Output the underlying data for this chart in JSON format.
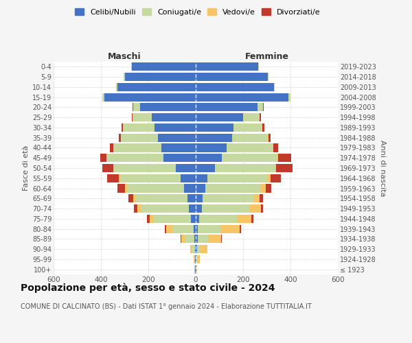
{
  "age_groups": [
    "100+",
    "95-99",
    "90-94",
    "85-89",
    "80-84",
    "75-79",
    "70-74",
    "65-69",
    "60-64",
    "55-59",
    "50-54",
    "45-49",
    "40-44",
    "35-39",
    "30-34",
    "25-29",
    "20-24",
    "15-19",
    "10-14",
    "5-9",
    "0-4"
  ],
  "birth_years": [
    "≤ 1923",
    "1924-1928",
    "1929-1933",
    "1934-1938",
    "1939-1943",
    "1944-1948",
    "1949-1953",
    "1954-1958",
    "1959-1963",
    "1964-1968",
    "1969-1973",
    "1974-1978",
    "1979-1983",
    "1984-1988",
    "1989-1993",
    "1994-1998",
    "1999-2003",
    "2004-2008",
    "2009-2013",
    "2014-2018",
    "2019-2023"
  ],
  "male_celibi": [
    2,
    2,
    3,
    5,
    10,
    20,
    30,
    35,
    50,
    65,
    85,
    135,
    145,
    160,
    175,
    185,
    235,
    385,
    330,
    300,
    270
  ],
  "male_coniugati": [
    3,
    5,
    15,
    40,
    90,
    160,
    200,
    220,
    240,
    255,
    260,
    240,
    200,
    155,
    130,
    80,
    30,
    10,
    5,
    3,
    2
  ],
  "male_vedovi": [
    0,
    2,
    5,
    15,
    25,
    15,
    15,
    10,
    10,
    5,
    3,
    2,
    2,
    1,
    1,
    1,
    0,
    0,
    0,
    0,
    0
  ],
  "male_divorziati": [
    0,
    0,
    0,
    3,
    5,
    10,
    15,
    20,
    30,
    50,
    45,
    25,
    15,
    10,
    8,
    5,
    2,
    0,
    0,
    0,
    0
  ],
  "fem_nubili": [
    2,
    3,
    5,
    8,
    10,
    15,
    25,
    30,
    40,
    50,
    80,
    110,
    130,
    155,
    160,
    200,
    260,
    390,
    330,
    305,
    265
  ],
  "fem_coniugate": [
    2,
    5,
    15,
    45,
    95,
    160,
    205,
    215,
    235,
    255,
    255,
    235,
    195,
    150,
    120,
    70,
    25,
    10,
    3,
    2,
    1
  ],
  "fem_vedove": [
    3,
    10,
    30,
    55,
    80,
    60,
    45,
    25,
    20,
    10,
    5,
    3,
    2,
    1,
    1,
    0,
    0,
    0,
    0,
    0,
    0
  ],
  "fem_divorziate": [
    0,
    0,
    0,
    2,
    5,
    8,
    10,
    15,
    25,
    45,
    70,
    55,
    20,
    10,
    8,
    5,
    2,
    0,
    0,
    0,
    0
  ],
  "color_celibi": "#4472C4",
  "color_coniugati": "#C5D9A0",
  "color_vedovi": "#F5C566",
  "color_divorziati": "#C0392B",
  "xlim": 600,
  "title": "Popolazione per età, sesso e stato civile - 2024",
  "subtitle": "COMUNE DI CALCINATO (BS) - Dati ISTAT 1° gennaio 2024 - Elaborazione TUTTITALIA.IT",
  "bg_color": "#f5f5f5"
}
